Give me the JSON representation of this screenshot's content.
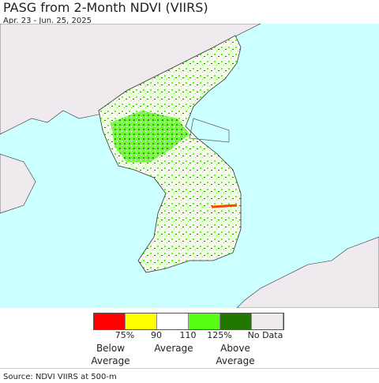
{
  "header": {
    "title": "PASG from 2-Month NDVI (VIIRS)",
    "subtitle": "Apr. 23 - Jun. 25, 2025"
  },
  "legend": {
    "colors": [
      "#ff0000",
      "#ffff00",
      "#ffffff",
      "#55ff11",
      "#227700",
      "#eeeaee"
    ],
    "tick_labels": [
      "75%",
      "90",
      "110",
      "125%",
      "No Data"
    ],
    "class_labels": [
      "Below Average",
      "Average",
      "Above Average"
    ]
  },
  "footer": {
    "source": "Source: NDVI VIIRS at 500-m"
  }
}
